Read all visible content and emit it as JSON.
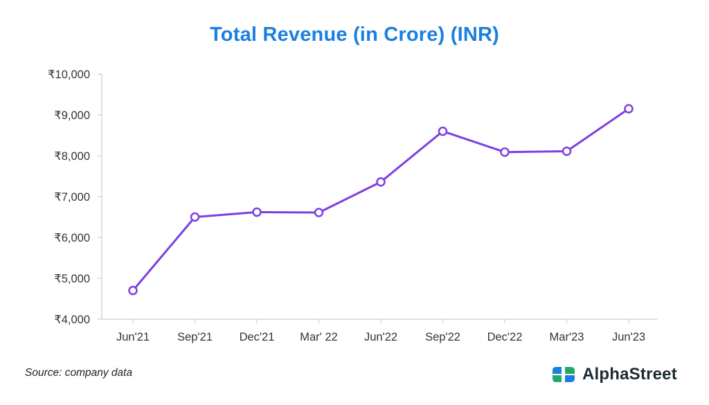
{
  "chart_data": {
    "type": "line",
    "title": "Total Revenue (in Crore) (INR)",
    "xlabel": "",
    "ylabel": "",
    "categories": [
      "Jun'21",
      "Sep'21",
      "Dec'21",
      "Mar' 22",
      "Jun'22",
      "Sep'22",
      "Dec'22",
      "Mar'23",
      "Jun'23"
    ],
    "series": [
      {
        "name": "Total Revenue",
        "values": [
          4701,
          6500,
          6620,
          6610,
          7360,
          8600,
          8090,
          8110,
          9150
        ]
      }
    ],
    "ylim": [
      4000,
      10000
    ],
    "yticks": [
      4000,
      5000,
      6000,
      7000,
      8000,
      9000,
      10000
    ],
    "ytick_labels": [
      "₹4,000",
      "₹5,000",
      "₹6,000",
      "₹7,000",
      "₹8,000",
      "₹9,000",
      "₹10,000"
    ],
    "grid": false,
    "colors": {
      "line": "#7b3fe4",
      "title": "#1a7fe0",
      "axis": "#cccccc"
    }
  },
  "footer": {
    "source": "Source: company data",
    "brand": "AlphaStreet"
  },
  "brand_colors": {
    "blue": "#1a7fe0",
    "green": "#27a86b"
  }
}
